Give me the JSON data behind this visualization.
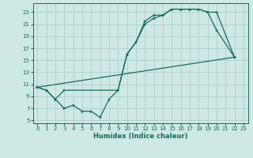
{
  "xlabel": "Humidex (Indice chaleur)",
  "bg_color": "#cde8e5",
  "grid_color": "#aecfcc",
  "line_color": "#1a6b5a",
  "xlim": [
    -0.5,
    23.5
  ],
  "ylim": [
    4.5,
    24.5
  ],
  "yticks": [
    5,
    7,
    9,
    11,
    13,
    15,
    17,
    19,
    21,
    23
  ],
  "xticks": [
    0,
    1,
    2,
    3,
    4,
    5,
    6,
    7,
    8,
    9,
    10,
    11,
    12,
    13,
    14,
    15,
    16,
    17,
    18,
    19,
    20,
    21,
    22,
    23
  ],
  "line1_x": [
    0,
    1,
    2,
    3,
    4,
    5,
    6,
    7,
    8,
    9,
    10,
    11,
    12,
    13,
    14,
    15,
    16,
    17,
    18,
    19,
    20,
    22
  ],
  "line1_y": [
    10.5,
    10,
    8.5,
    7,
    7.5,
    6.5,
    6.5,
    5.5,
    8.5,
    10,
    16,
    18,
    21,
    22,
    22.5,
    23.5,
    23.5,
    23.5,
    23.5,
    23,
    20,
    15.5
  ],
  "line2_x": [
    0,
    1,
    2,
    3,
    9,
    10,
    11,
    12,
    13,
    14,
    15,
    16,
    17,
    18,
    19,
    20,
    22
  ],
  "line2_y": [
    10.5,
    10,
    8.5,
    10,
    10,
    16,
    18,
    21.5,
    22.5,
    22.5,
    23.5,
    23.5,
    23.5,
    23.5,
    23,
    23,
    15.5
  ],
  "line3_x": [
    0,
    22
  ],
  "line3_y": [
    10.5,
    15.5
  ]
}
